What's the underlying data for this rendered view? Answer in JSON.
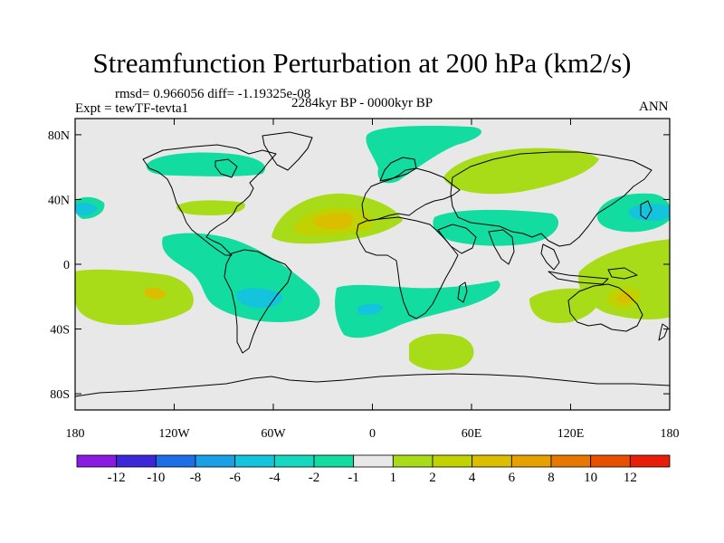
{
  "title": "Streamfunction Perturbation at 200 hPa (km2/s)",
  "stats": "rmsd= 0.966056 diff= -1.19325e-08",
  "experiment": "Expt = tewTF-tevta1",
  "period": "2284kyr BP - 0000kyr BP",
  "season": "ANN",
  "map_data": {
    "type": "contour-map",
    "projection": "cylindrical-equidistant",
    "lon_range": [
      -180,
      180
    ],
    "lat_range": [
      -90,
      90
    ],
    "lon_ticks": [
      {
        "value": -180,
        "label": "180"
      },
      {
        "value": -120,
        "label": "120W"
      },
      {
        "value": -60,
        "label": "60W"
      },
      {
        "value": 0,
        "label": "0"
      },
      {
        "value": 60,
        "label": "60E"
      },
      {
        "value": 120,
        "label": "120E"
      },
      {
        "value": 180,
        "label": "180"
      }
    ],
    "lat_ticks": [
      {
        "value": 80,
        "label": "80N"
      },
      {
        "value": 40,
        "label": "40N"
      },
      {
        "value": 0,
        "label": "0"
      },
      {
        "value": -40,
        "label": "40S"
      },
      {
        "value": -80,
        "label": "80S"
      }
    ],
    "colorbar": {
      "colors": [
        "#8a1be0",
        "#3c28d8",
        "#1e6ee6",
        "#1aa0e6",
        "#14c3dc",
        "#16d8c0",
        "#12dca0",
        "#e8e8e8",
        "#a8dc18",
        "#c0d200",
        "#dcbe00",
        "#e6a000",
        "#e67800",
        "#e65000",
        "#e61e0a"
      ],
      "labels": [
        "-12",
        "-10",
        "-8",
        "-6",
        "-4",
        "-2",
        "-1",
        "1",
        "2",
        "4",
        "6",
        "8",
        "10",
        "12"
      ]
    },
    "anomaly_regions": [
      {
        "name": "north-atlantic-high",
        "level": "2",
        "color": "#a8dc18",
        "lon": -45,
        "lat": 30
      },
      {
        "name": "north-atlantic-core",
        "level": "4",
        "color": "#c0d200",
        "lon": -30,
        "lat": 32
      },
      {
        "name": "north-atlantic-center",
        "level": "6",
        "color": "#dcbe00",
        "lon": -20,
        "lat": 35
      },
      {
        "name": "siberia-high",
        "level": "2",
        "color": "#a8dc18",
        "lon": 90,
        "lat": 70
      },
      {
        "name": "north-pacific-low",
        "level": "-2",
        "color": "#16d8c0",
        "lon": -140,
        "lat": 60
      },
      {
        "name": "greenland-low",
        "level": "-1",
        "color": "#12dca0",
        "lon": 10,
        "lat": 75
      },
      {
        "name": "mediterranean-low",
        "level": "-1",
        "color": "#12dca0",
        "lon": 40,
        "lat": 30
      },
      {
        "name": "east-asia-low",
        "level": "-4",
        "color": "#14c3dc",
        "lon": 150,
        "lat": 35
      },
      {
        "name": "south-pacific-high",
        "level": "6",
        "color": "#dcbe00",
        "lon": -135,
        "lat": -15
      },
      {
        "name": "southeast-pacific-low",
        "level": "-4",
        "color": "#14c3dc",
        "lon": -65,
        "lat": -15
      },
      {
        "name": "south-atlantic-low",
        "level": "-4",
        "color": "#14c3dc",
        "lon": -5,
        "lat": -25
      },
      {
        "name": "south-indian-high",
        "level": "2",
        "color": "#a8dc18",
        "lon": 50,
        "lat": -45
      },
      {
        "name": "australia-high",
        "level": "6",
        "color": "#dcbe00",
        "lon": 150,
        "lat": -20
      }
    ]
  }
}
